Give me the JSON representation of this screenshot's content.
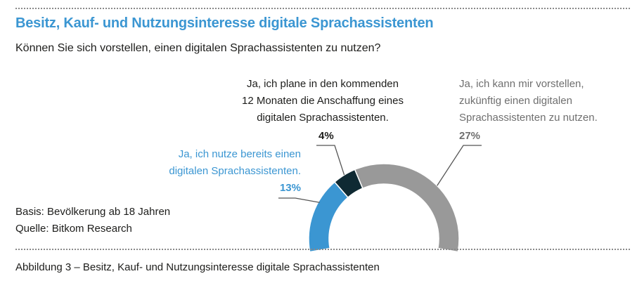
{
  "header": {
    "title": "Besitz, Kauf- und Nutzungsinteresse digitale Sprachassistenten",
    "question": "Können Sie sich vorstellen, einen digitalen Sprachassistenten zu nutzen?"
  },
  "footer": {
    "basis": "Basis: Bevölkerung ab 18 Jahren",
    "source": "Quelle: Bitkom Research",
    "caption": "Abbildung 3 – Besitz, Kauf- und Nutzungsinteresse digitale Sprachassistenten"
  },
  "chart_data": {
    "type": "pie",
    "variant": "semi-donut",
    "title": "Besitz, Kauf- und Nutzungsinteresse digitale Sprachassistenten",
    "subtitle": "Können Sie sich vorstellen, einen digitalen Sprachassistenten zu nutzen?",
    "unit": "%",
    "series": [
      {
        "name": "Nutzung",
        "label_lines": [
          "Ja, ich nutze bereits einen",
          "digitalen Sprachassistenten."
        ],
        "value": 13,
        "value_label": "13%",
        "color": "#3b96d2"
      },
      {
        "name": "Kaufplanung",
        "label_lines": [
          "Ja, ich plane in den kommenden",
          "12 Monaten die Anschaffung eines",
          "digitalen Sprachassistenten."
        ],
        "value": 4,
        "value_label": "4%",
        "color": "#0f2a33"
      },
      {
        "name": "Nutzungsinteresse",
        "label_lines": [
          "Ja, ich kann mir vorstellen,",
          "zukünftig einen digitalen",
          "Sprachassistenten zu nutzen."
        ],
        "value": 27,
        "value_label": "27%",
        "color": "#999999"
      }
    ]
  }
}
